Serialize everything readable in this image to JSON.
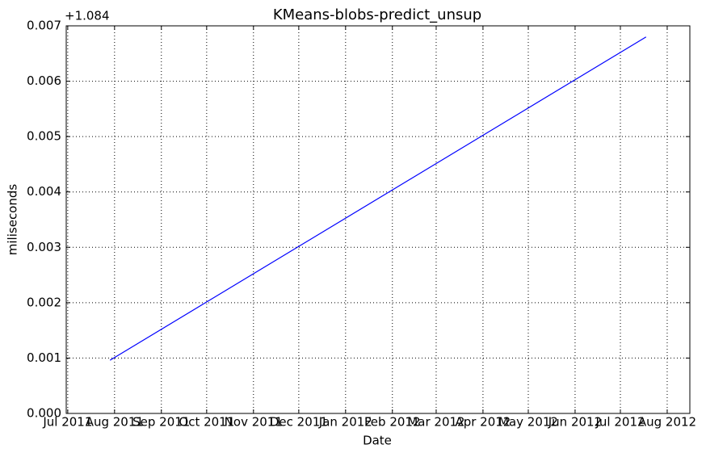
{
  "chart_data": {
    "type": "line",
    "title": "KMeans-blobs-predict_unsup",
    "x_label": "Date",
    "y_label": "miliseconds",
    "offset_text": "+1.084",
    "x": [
      "2011-07-29",
      "2012-07-18"
    ],
    "values": [
      0.00096,
      0.0068
    ],
    "color": "#0000ff",
    "xlim": [
      "2011-06-30",
      "2012-08-16"
    ],
    "xticks": [
      {
        "value": "2011-07-01",
        "label": "Jul 2011"
      },
      {
        "value": "2011-08-01",
        "label": "Aug 2011"
      },
      {
        "value": "2011-09-01",
        "label": "Sep 2011"
      },
      {
        "value": "2011-10-01",
        "label": "Oct 2011"
      },
      {
        "value": "2011-11-01",
        "label": "Nov 2011"
      },
      {
        "value": "2011-12-01",
        "label": "Dec 2011"
      },
      {
        "value": "2012-01-01",
        "label": "Jan 2012"
      },
      {
        "value": "2012-02-01",
        "label": "Feb 2012"
      },
      {
        "value": "2012-03-01",
        "label": "Mar 2012"
      },
      {
        "value": "2012-04-01",
        "label": "Apr 2012"
      },
      {
        "value": "2012-05-01",
        "label": "May 2012"
      },
      {
        "value": "2012-06-01",
        "label": "Jun 2012"
      },
      {
        "value": "2012-07-01",
        "label": "Jul 2012"
      },
      {
        "value": "2012-08-01",
        "label": "Aug 2012"
      }
    ],
    "ylim": [
      0,
      0.007
    ],
    "yticks": [
      {
        "value": 0,
        "label": "0.000"
      },
      {
        "value": 0.001,
        "label": "0.001"
      },
      {
        "value": 0.002,
        "label": "0.002"
      },
      {
        "value": 0.003,
        "label": "0.003"
      },
      {
        "value": 0.004,
        "label": "0.004"
      },
      {
        "value": 0.005,
        "label": "0.005"
      },
      {
        "value": 0.006,
        "label": "0.006"
      },
      {
        "value": 0.007,
        "label": "0.007"
      }
    ],
    "grid": true
  }
}
